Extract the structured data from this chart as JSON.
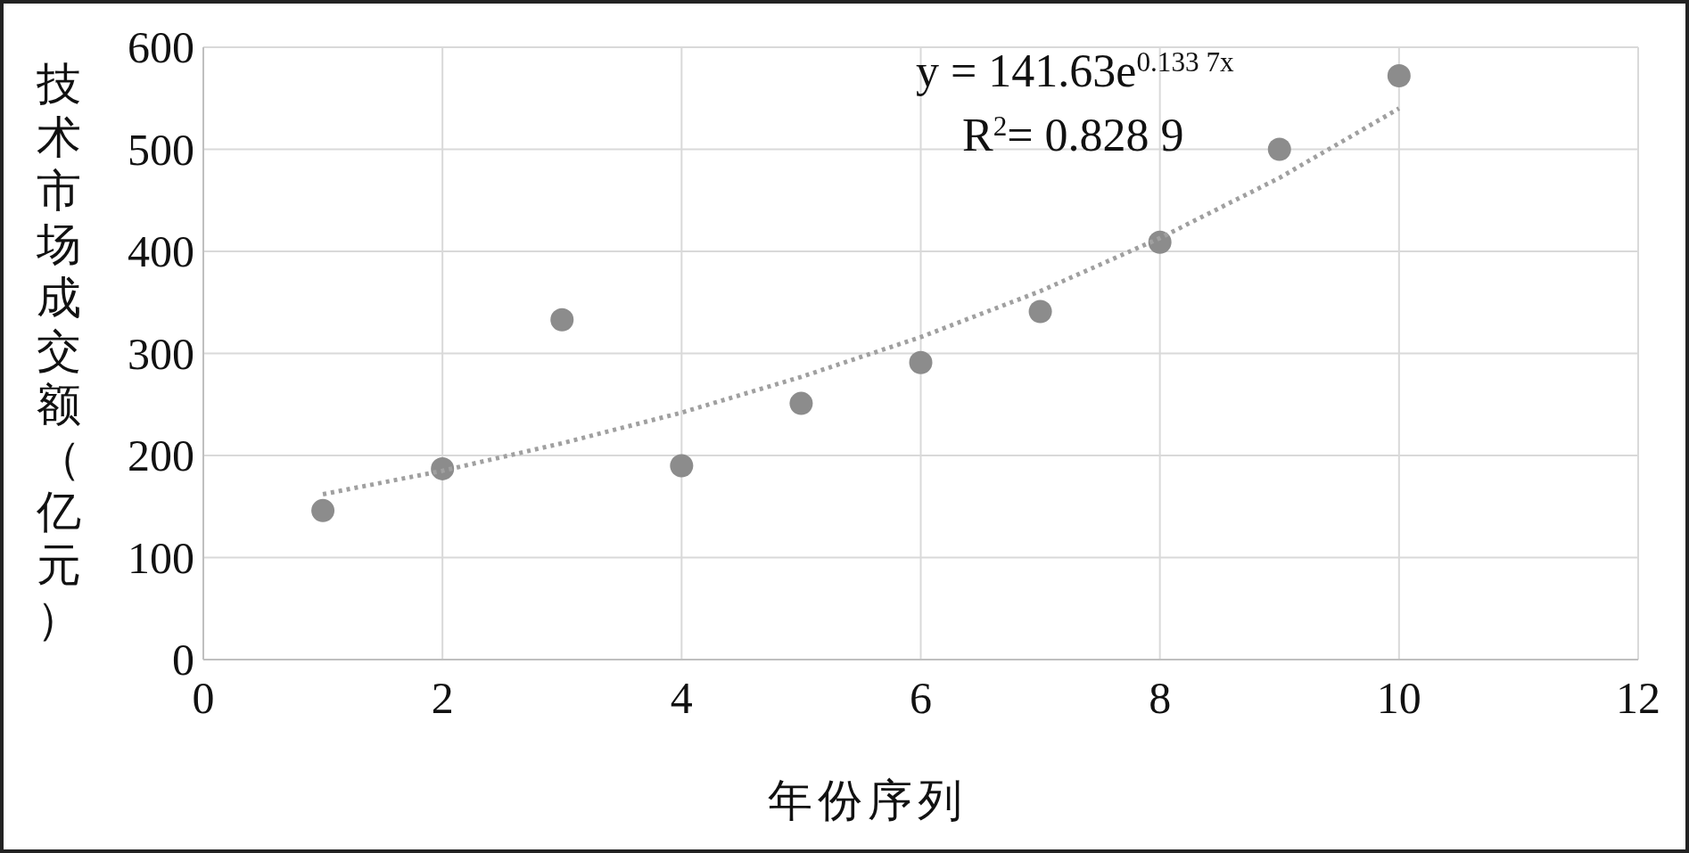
{
  "chart_data": {
    "type": "scatter",
    "xlabel": "年份序列",
    "ylabel": "技术市场成交额（亿元）",
    "annotations": [
      "y = 141.63e$^{0.133 7x}$",
      "R$^{2}$= 0.828 9"
    ],
    "x": [
      1,
      2,
      3,
      4,
      5,
      6,
      7,
      8,
      9,
      10
    ],
    "series": [
      {
        "type": "scatter",
        "color": "#8c8c8c",
        "marker": "circle",
        "values": [
          146,
          187,
          333,
          190,
          251,
          291,
          341,
          409,
          500,
          572
        ]
      },
      {
        "type": "line",
        "color": "#a0a0a0",
        "line_style": "dotted",
        "marker": "none",
        "x": [
          1,
          2,
          3,
          4,
          5,
          6,
          7,
          8,
          9,
          10
        ],
        "values": [
          162,
          185,
          212,
          242,
          277,
          316,
          361,
          413,
          472,
          540
        ]
      }
    ],
    "xlim": [
      0,
      12
    ],
    "ylim": [
      0,
      600
    ],
    "xticks": [
      0,
      2,
      4,
      6,
      8,
      10,
      12
    ],
    "yticks": [
      0,
      100,
      200,
      300,
      400,
      500,
      600
    ],
    "grid": true
  }
}
